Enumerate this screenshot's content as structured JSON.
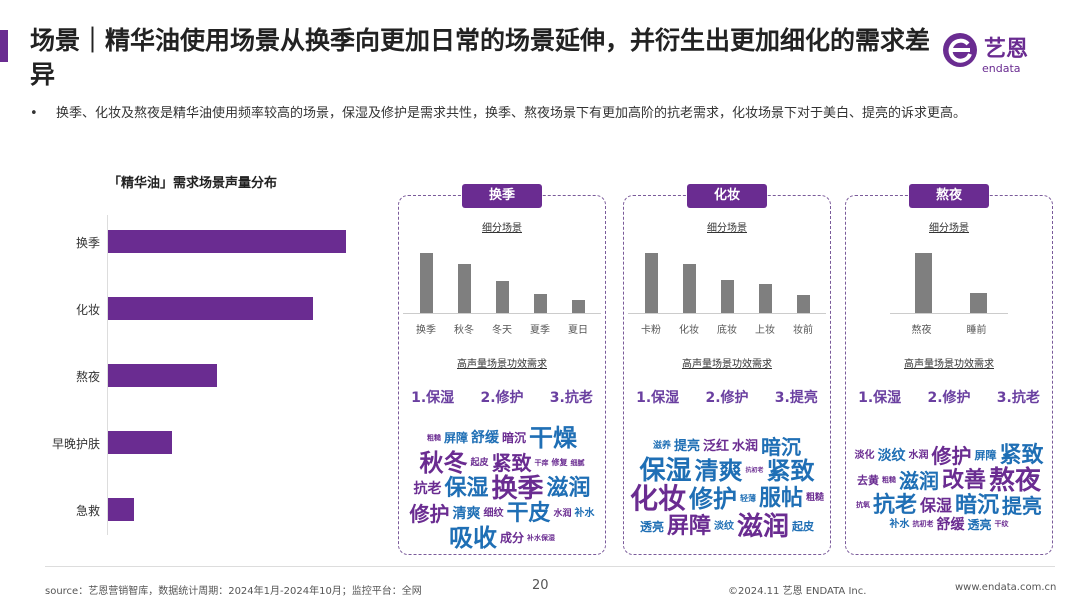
{
  "header": {
    "title": "场景｜精华油使用场景从换季向更加日常的场景延伸，并衍生出更加细化的需求差异",
    "logo_text": "艺恩",
    "logo_sub": "endata"
  },
  "bullet": {
    "marker": "•",
    "text": "换季、化妆及熬夜是精华油使用频率较高的场景，保湿及修护是需求共性，换季、熬夜场景下有更加高阶的抗老需求，化妆场景下对于美白、提亮的诉求更高。"
  },
  "chart_data": {
    "type": "bar",
    "orientation": "horizontal",
    "title": "「精华油」需求场景声量分布",
    "categories": [
      "换季",
      "化妆",
      "熬夜",
      "早晚护肤",
      "急救"
    ],
    "values": [
      100,
      86,
      46,
      27,
      11
    ],
    "value_unit": "relative (no axis printed)",
    "color": "#6a2c91"
  },
  "panels": [
    {
      "tab": "换季",
      "sub_title": "细分场景",
      "categories": [
        "换季",
        "秋冬",
        "冬天",
        "夏季",
        "夏日"
      ],
      "values": [
        100,
        81,
        54,
        31,
        22
      ],
      "needs_title": "高声量场景功效需求",
      "needs": [
        "1.保湿",
        "2.修护",
        "3.抗老"
      ],
      "words": [
        "粗糙",
        "屏障",
        "舒缓",
        "暗沉",
        "干燥",
        "秋冬",
        "起皮",
        "紧致",
        "干痒",
        "修复",
        "细腻",
        "抗老",
        "保湿",
        "换季",
        "滋润",
        "修护",
        "清爽",
        "细纹",
        "干皮",
        "水润",
        "补水",
        "吸收",
        "成分",
        "补水保湿"
      ]
    },
    {
      "tab": "化妆",
      "sub_title": "细分场景",
      "categories": [
        "卡粉",
        "化妆",
        "底妆",
        "上妆",
        "妆前"
      ],
      "values": [
        100,
        81,
        55,
        49,
        30
      ],
      "needs_title": "高声量场景功效需求",
      "needs": [
        "1.保湿",
        "2.修护",
        "3.提亮"
      ],
      "words": [
        "滋养",
        "提亮",
        "泛红",
        "水润",
        "暗沉",
        "保湿",
        "清爽",
        "抗初老",
        "紧致",
        "化妆",
        "修护",
        "轻薄",
        "服帖",
        "粗糙",
        "透亮",
        "屏障",
        "淡纹",
        "滋润",
        "起皮"
      ]
    },
    {
      "tab": "熬夜",
      "sub_title": "细分场景",
      "categories": [
        "熬夜",
        "睡前"
      ],
      "values": [
        100,
        34
      ],
      "needs_title": "高声量场景功效需求",
      "needs": [
        "1.保湿",
        "2.修护",
        "3.抗老"
      ],
      "words": [
        "淡化",
        "淡纹",
        "水润",
        "修护",
        "屏障",
        "紧致",
        "去黄",
        "粗糙",
        "滋润",
        "改善",
        "熬夜",
        "抗氧",
        "抗老",
        "保湿",
        "暗沉",
        "提亮",
        "补水",
        "抗初老",
        "舒缓",
        "透亮",
        "干纹"
      ]
    }
  ],
  "footer": {
    "source": "source：艺恩营销智库，数据统计周期：2024年1月-2024年10月；监控平台：全网",
    "page": "20",
    "copyright": "©2024.11  艺恩 ENDATA Inc.",
    "url": "www.endata.com.cn"
  },
  "colors": {
    "accent": "#6a2c91",
    "word_purple": "#6a2c91",
    "word_blue": "#1f6fb5",
    "bar_gray": "#7f7f7f"
  }
}
